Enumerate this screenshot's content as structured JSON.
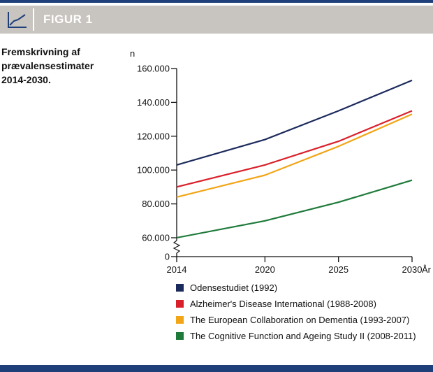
{
  "header": {
    "figure_label": "FIGUR 1",
    "icon": "line-chart-icon"
  },
  "subtitle": "Fremskrivning af prævalensestimater 2014-2030.",
  "chart_data": {
    "type": "line",
    "title": "",
    "ylabel": "n",
    "xlabel": "År",
    "x": [
      2014,
      2020,
      2025,
      2030
    ],
    "xticklabels": [
      "2014",
      "2020",
      "2025",
      "2030"
    ],
    "yticks": [
      0,
      60000,
      80000,
      100000,
      120000,
      140000,
      160000
    ],
    "yticklabels": [
      "0",
      "60.000",
      "80.000",
      "100.000",
      "120.000",
      "140.000",
      "160.000"
    ],
    "axis_break": "between 0 and 60.000",
    "ylim": [
      60000,
      160000
    ],
    "grid": false,
    "legend_placement": "bottom",
    "series": [
      {
        "name": "Odensestudiet (1992)",
        "color": "#1b2a5c",
        "values": [
          103000,
          118000,
          135000,
          153000
        ]
      },
      {
        "name": "Alzheimer's Disease International (1988-2008)",
        "color": "#d9202a",
        "values": [
          90000,
          103000,
          117000,
          135000
        ]
      },
      {
        "name": "The European Collaboration on Dementia (1993-2007)",
        "color": "#f2a516",
        "values": [
          84000,
          97000,
          114000,
          133000
        ]
      },
      {
        "name": "The Cognitive Function and Ageing Study II (2008-2011)",
        "color": "#1e7a3a",
        "values": [
          60000,
          70000,
          81000,
          94000
        ]
      }
    ]
  }
}
